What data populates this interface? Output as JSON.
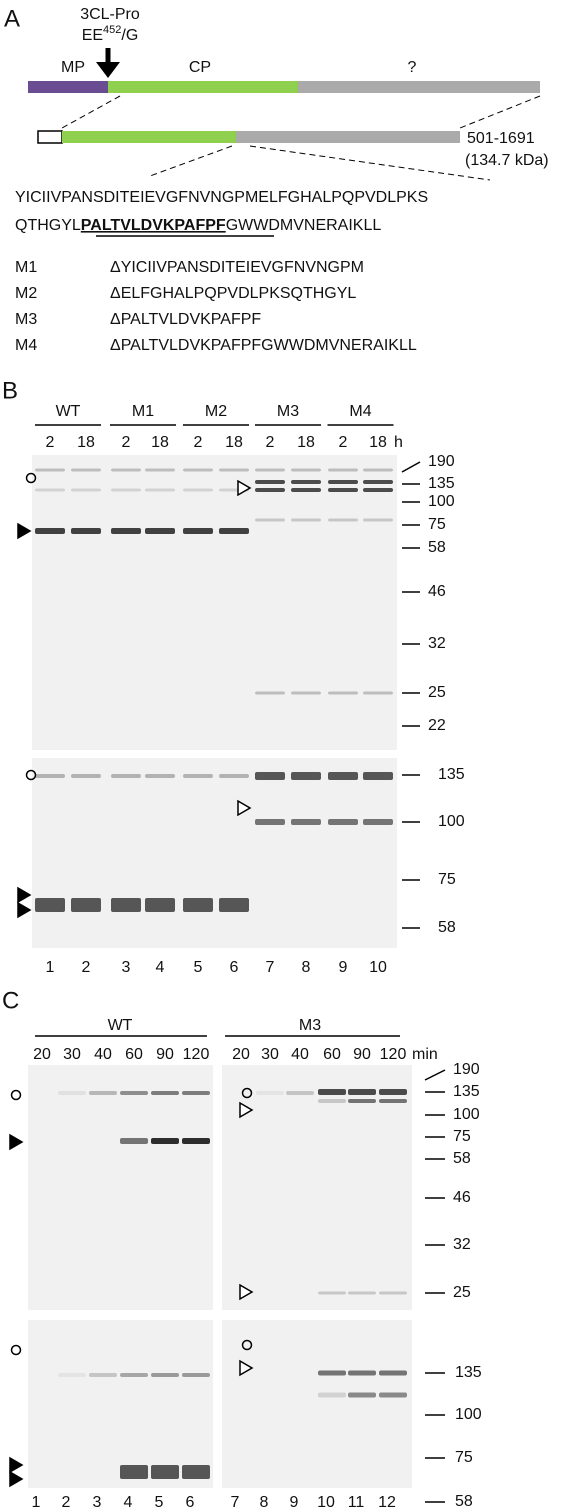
{
  "panel_a": {
    "label": "A",
    "protease": "3CL-Pro",
    "site_prefix": "EE",
    "site_superscript": "452",
    "site_suffix": "/G",
    "domains": [
      "MP",
      "CP",
      "?"
    ],
    "range": "501-1691",
    "mass": "(134.7 kDa)",
    "sequence_line_1": "YICIIVPANSDITEIEVGFNVNGPMELFGHALPQPVDLPKS",
    "sequence_line_2_start": "QTHGYL",
    "sequence_line_2_bold": "PALTVLDVKPAFPF",
    "sequence_line_2_end": "GWWDMVNERAIKLL",
    "mutants": [
      {
        "name": "M1",
        "deletion": "ΔYICIIVPANSDITEIEVGFNVNGPM"
      },
      {
        "name": "M2",
        "deletion": "ΔELFGHALPQPVDLPKSQTHGYL"
      },
      {
        "name": "M3",
        "deletion": "ΔPALTVLDVKPAFPF"
      },
      {
        "name": "M4",
        "deletion": "ΔPALTVLDVKPAFPFGWWDMVNERAIKLL"
      }
    ]
  },
  "panel_b": {
    "label": "B",
    "groups": [
      "WT",
      "M1",
      "M2",
      "M3",
      "M4"
    ],
    "time_labels": [
      "2",
      "18",
      "2",
      "18",
      "2",
      "18",
      "2",
      "18",
      "2",
      "18"
    ],
    "time_unit": "h",
    "markers_top": [
      190,
      135,
      100,
      75,
      58,
      46,
      32,
      25,
      22
    ],
    "markers_bottom": [
      135,
      100,
      75,
      58
    ],
    "lanes": [
      1,
      2,
      3,
      4,
      5,
      6,
      7,
      8,
      9,
      10
    ]
  },
  "panel_c": {
    "label": "C",
    "groups": [
      "WT",
      "M3"
    ],
    "time_labels": [
      "20",
      "30",
      "40",
      "60",
      "90",
      "120",
      "20",
      "30",
      "40",
      "60",
      "90",
      "120"
    ],
    "time_unit": "min",
    "markers_top": [
      190,
      135,
      100,
      75,
      58,
      46,
      32,
      25
    ],
    "markers_bottom": [
      135,
      100,
      75,
      58
    ],
    "lanes": [
      1,
      2,
      3,
      4,
      5,
      6,
      7,
      8,
      9,
      10,
      11,
      12
    ]
  }
}
